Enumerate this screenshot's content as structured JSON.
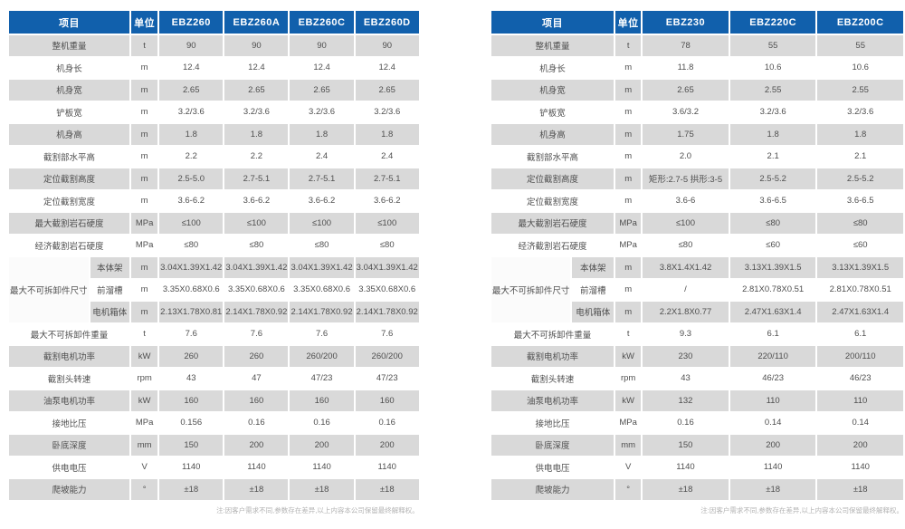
{
  "page": {
    "note": "注:因客户需求不同,参数存在差异,以上内容本公司保留最终解释权。"
  },
  "colors": {
    "header_bg": "#1160ac",
    "row_stripe": "#d9d9d9",
    "row_white": "#ffffff",
    "group_cell_bg": "#fbfbfb",
    "cell_text": "#4f4f4f",
    "header_text": "#ffffff",
    "note_text": "#b3b3b3"
  },
  "tables": [
    {
      "headers": {
        "item": "项目",
        "unit": "单位",
        "models": [
          "EBZ260",
          "EBZ260A",
          "EBZ260C",
          "EBZ260D"
        ]
      },
      "rows": [
        {
          "label": "整机重量",
          "unit": "t",
          "values": [
            "90",
            "90",
            "90",
            "90"
          ]
        },
        {
          "label": "机身长",
          "unit": "m",
          "values": [
            "12.4",
            "12.4",
            "12.4",
            "12.4"
          ]
        },
        {
          "label": "机身宽",
          "unit": "m",
          "values": [
            "2.65",
            "2.65",
            "2.65",
            "2.65"
          ]
        },
        {
          "label": "铲板宽",
          "unit": "m",
          "values": [
            "3.2/3.6",
            "3.2/3.6",
            "3.2/3.6",
            "3.2/3.6"
          ]
        },
        {
          "label": "机身高",
          "unit": "m",
          "values": [
            "1.8",
            "1.8",
            "1.8",
            "1.8"
          ]
        },
        {
          "label": "截割部水平高",
          "unit": "m",
          "values": [
            "2.2",
            "2.2",
            "2.4",
            "2.4"
          ]
        },
        {
          "label": "定位截割高度",
          "unit": "m",
          "values": [
            "2.5-5.0",
            "2.7-5.1",
            "2.7-5.1",
            "2.7-5.1"
          ]
        },
        {
          "label": "定位截割宽度",
          "unit": "m",
          "values": [
            "3.6-6.2",
            "3.6-6.2",
            "3.6-6.2",
            "3.6-6.2"
          ]
        },
        {
          "label": "最大截割岩石硬度",
          "unit": "MPa",
          "values": [
            "≤100",
            "≤100",
            "≤100",
            "≤100"
          ]
        },
        {
          "label": "经济截割岩石硬度",
          "unit": "MPa",
          "values": [
            "≤80",
            "≤80",
            "≤80",
            "≤80"
          ]
        },
        {
          "group": "最大不可拆卸件尺寸",
          "subrows": [
            {
              "label": "本体架",
              "unit": "m",
              "values": [
                "3.04X1.39X1.42",
                "3.04X1.39X1.42",
                "3.04X1.39X1.42",
                "3.04X1.39X1.42"
              ]
            },
            {
              "label": "前溜槽",
              "unit": "m",
              "values": [
                "3.35X0.68X0.6",
                "3.35X0.68X0.6",
                "3.35X0.68X0.6",
                "3.35X0.68X0.6"
              ]
            },
            {
              "label": "电机箱体",
              "unit": "m",
              "values": [
                "2.13X1.78X0.81",
                "2.14X1.78X0.92",
                "2.14X1.78X0.92",
                "2.14X1.78X0.92"
              ]
            }
          ]
        },
        {
          "label": "最大不可拆卸件重量",
          "unit": "t",
          "values": [
            "7.6",
            "7.6",
            "7.6",
            "7.6"
          ]
        },
        {
          "label": "截割电机功率",
          "unit": "kW",
          "values": [
            "260",
            "260",
            "260/200",
            "260/200"
          ]
        },
        {
          "label": "截割头转速",
          "unit": "rpm",
          "values": [
            "43",
            "47",
            "47/23",
            "47/23"
          ]
        },
        {
          "label": "油泵电机功率",
          "unit": "kW",
          "values": [
            "160",
            "160",
            "160",
            "160"
          ]
        },
        {
          "label": "接地比压",
          "unit": "MPa",
          "values": [
            "0.156",
            "0.16",
            "0.16",
            "0.16"
          ]
        },
        {
          "label": "卧底深度",
          "unit": "mm",
          "values": [
            "150",
            "200",
            "200",
            "200"
          ]
        },
        {
          "label": "供电电压",
          "unit": "V",
          "values": [
            "1140",
            "1140",
            "1140",
            "1140"
          ]
        },
        {
          "label": "爬坡能力",
          "unit": "°",
          "values": [
            "±18",
            "±18",
            "±18",
            "±18"
          ]
        }
      ]
    },
    {
      "headers": {
        "item": "项目",
        "unit": "单位",
        "models": [
          "EBZ230",
          "EBZ220C",
          "EBZ200C"
        ]
      },
      "rows": [
        {
          "label": "整机重量",
          "unit": "t",
          "values": [
            "78",
            "55",
            "55"
          ]
        },
        {
          "label": "机身长",
          "unit": "m",
          "values": [
            "11.8",
            "10.6",
            "10.6"
          ]
        },
        {
          "label": "机身宽",
          "unit": "m",
          "values": [
            "2.65",
            "2.55",
            "2.55"
          ]
        },
        {
          "label": "铲板宽",
          "unit": "m",
          "values": [
            "3.6/3.2",
            "3.2/3.6",
            "3.2/3.6"
          ]
        },
        {
          "label": "机身高",
          "unit": "m",
          "values": [
            "1.75",
            "1.8",
            "1.8"
          ]
        },
        {
          "label": "截割部水平高",
          "unit": "m",
          "values": [
            "2.0",
            "2.1",
            "2.1"
          ]
        },
        {
          "label": "定位截割高度",
          "unit": "m",
          "values": [
            "矩形:2.7-5 拱形:3-5",
            "2.5-5.2",
            "2.5-5.2"
          ]
        },
        {
          "label": "定位截割宽度",
          "unit": "m",
          "values": [
            "3.6-6",
            "3.6-6.5",
            "3.6-6.5"
          ]
        },
        {
          "label": "最大截割岩石硬度",
          "unit": "MPa",
          "values": [
            "≤100",
            "≤80",
            "≤80"
          ]
        },
        {
          "label": "经济截割岩石硬度",
          "unit": "MPa",
          "values": [
            "≤80",
            "≤60",
            "≤60"
          ]
        },
        {
          "group": "最大不可拆卸件尺寸",
          "subrows": [
            {
              "label": "本体架",
              "unit": "m",
              "values": [
                "3.8X1.4X1.42",
                "3.13X1.39X1.5",
                "3.13X1.39X1.5"
              ]
            },
            {
              "label": "前溜槽",
              "unit": "m",
              "values": [
                "/",
                "2.81X0.78X0.51",
                "2.81X0.78X0.51"
              ]
            },
            {
              "label": "电机箱体",
              "unit": "m",
              "values": [
                "2.2X1.8X0.77",
                "2.47X1.63X1.4",
                "2.47X1.63X1.4"
              ]
            }
          ]
        },
        {
          "label": "最大不可拆卸件重量",
          "unit": "t",
          "values": [
            "9.3",
            "6.1",
            "6.1"
          ]
        },
        {
          "label": "截割电机功率",
          "unit": "kW",
          "values": [
            "230",
            "220/110",
            "200/110"
          ]
        },
        {
          "label": "截割头转速",
          "unit": "rpm",
          "values": [
            "43",
            "46/23",
            "46/23"
          ]
        },
        {
          "label": "油泵电机功率",
          "unit": "kW",
          "values": [
            "132",
            "110",
            "110"
          ]
        },
        {
          "label": "接地比压",
          "unit": "MPa",
          "values": [
            "0.16",
            "0.14",
            "0.14"
          ]
        },
        {
          "label": "卧底深度",
          "unit": "mm",
          "values": [
            "150",
            "200",
            "200"
          ]
        },
        {
          "label": "供电电压",
          "unit": "V",
          "values": [
            "1140",
            "1140",
            "1140"
          ]
        },
        {
          "label": "爬坡能力",
          "unit": "°",
          "values": [
            "±18",
            "±18",
            "±18"
          ]
        }
      ]
    }
  ]
}
